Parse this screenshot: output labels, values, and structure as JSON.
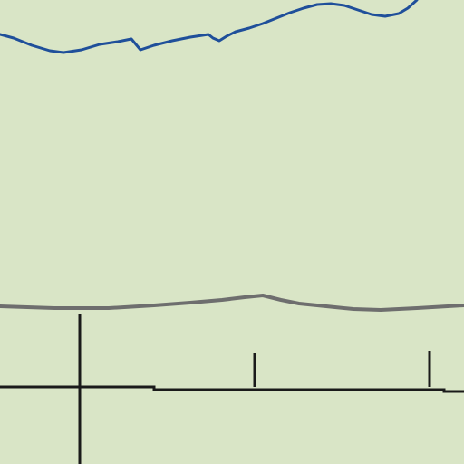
{
  "map": {
    "colors": {
      "land": "#d9e5c6",
      "river": "#1f4f9a",
      "road": "#6e6e6e",
      "boundary": "#1a1a1a"
    },
    "features": {
      "river": {
        "kind": "waterway-line"
      },
      "road": {
        "kind": "road-line"
      },
      "boundary": {
        "kind": "boundary-line"
      }
    }
  }
}
